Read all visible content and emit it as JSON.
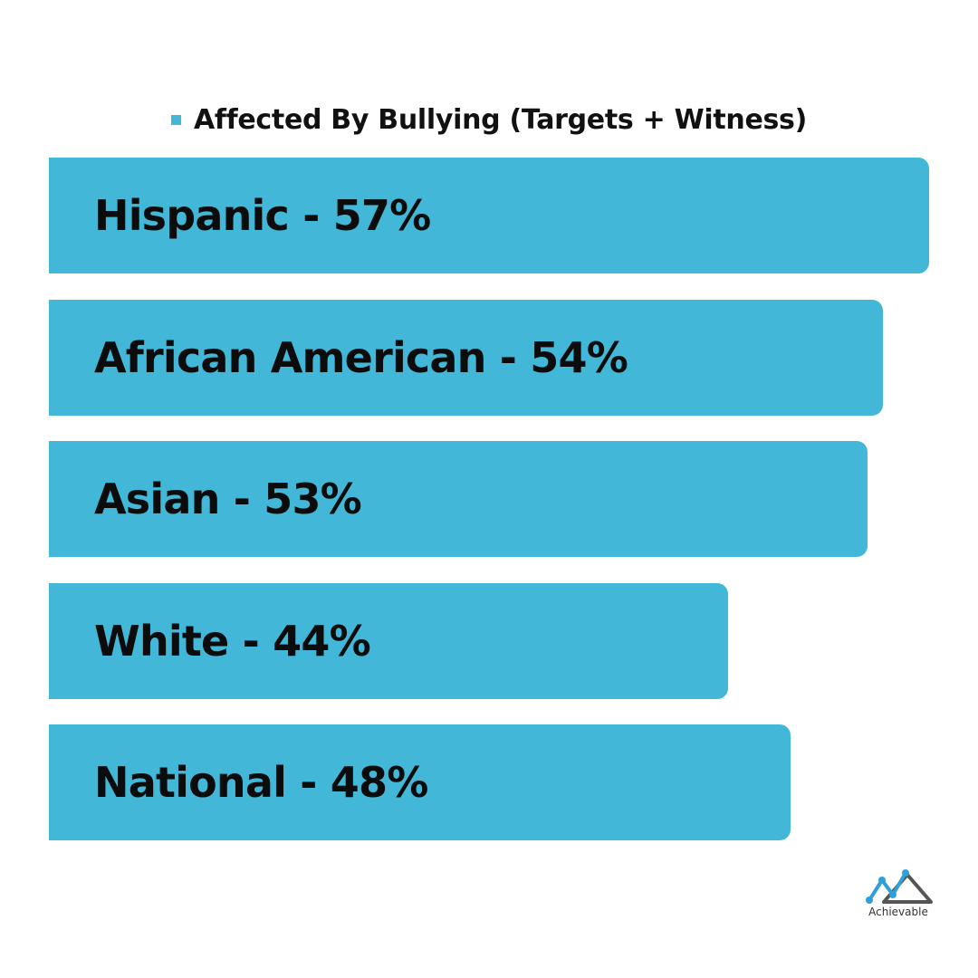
{
  "colors": {
    "bar": "#43b7d7",
    "legend_swatch": "#43b7d7",
    "logo_blue": "#2f9fd8",
    "logo_gray": "#555555"
  },
  "legend": {
    "label": "Affected By Bullying (Targets + Witness)"
  },
  "chart_data": {
    "type": "bar",
    "orientation": "horizontal",
    "categories": [
      "Hispanic",
      "African American",
      "Asian",
      "White",
      "National"
    ],
    "series": [
      {
        "name": "Affected By Bullying (Targets + Witness)",
        "values": [
          57,
          54,
          53,
          44,
          48
        ]
      }
    ],
    "data_labels": [
      "Hispanic - 57%",
      "African American - 54%",
      "Asian - 53%",
      "White - 44%",
      "National - 48%"
    ],
    "unit": "%",
    "xlim": [
      0,
      57
    ],
    "grid": false,
    "legend_position": "top-center"
  },
  "logo": {
    "text": "Achievable",
    "icon": "chart-mountain-icon"
  }
}
